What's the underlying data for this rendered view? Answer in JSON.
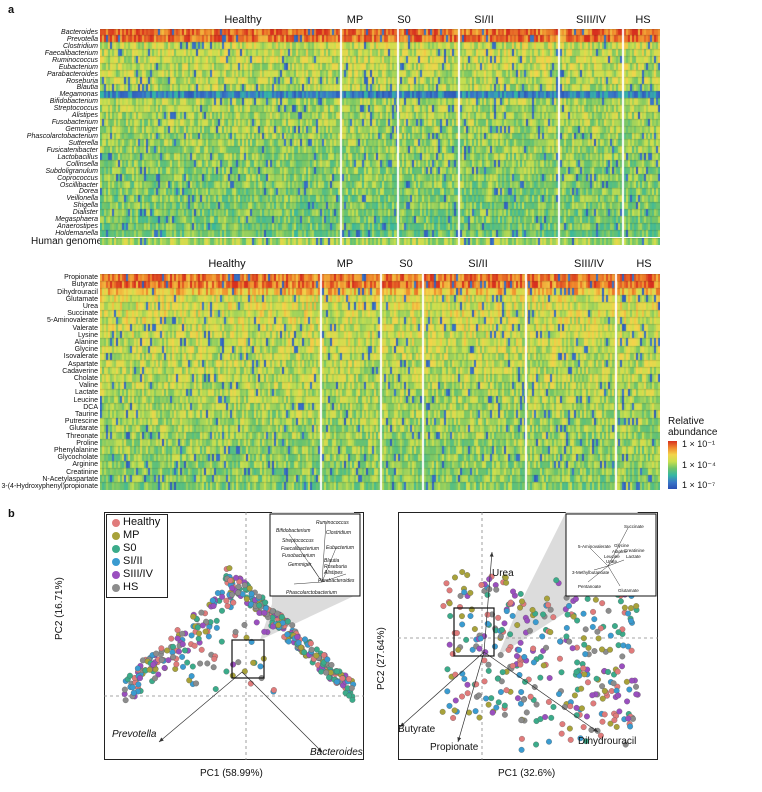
{
  "panel_a": {
    "letter": "a",
    "heatmap1": {
      "groups": [
        "Healthy",
        "MP",
        "S0",
        "SI/II",
        "SIII/IV",
        "HS"
      ],
      "rows": [
        "Bacteroides",
        "Prevotella",
        "Clostridium",
        "Faecalibacterium",
        "Ruminococcus",
        "Eubacterium",
        "Parabacteroides",
        "Roseburia",
        "Blautia",
        "Megamonas",
        "Bifidobacterium",
        "Streptococcus",
        "Alistipes",
        "Fusobacterium",
        "Gemmiger",
        "Phascolarctobacterium",
        "Sutterella",
        "Fusicatenibacter",
        "Lactobacillus",
        "Collinsella",
        "Subdoligranulum",
        "Coprococcus",
        "Oscillibacter",
        "Dorea",
        "Veillonella",
        "Shigella",
        "Dialister",
        "Megasphaera",
        "Anaerostipes",
        "Holdemanella"
      ],
      "extra_row": "Human genome rate"
    },
    "heatmap2": {
      "groups": [
        "Healthy",
        "MP",
        "S0",
        "SI/II",
        "SIII/IV",
        "HS"
      ],
      "rows": [
        "Propionate",
        "Butyrate",
        "Dihydrouracil",
        "Glutamate",
        "Urea",
        "Succinate",
        "5-Aminovalerate",
        "Valerate",
        "Lysine",
        "Alanine",
        "Glycine",
        "Isovalerate",
        "Aspartate",
        "Cadaverine",
        "Cholate",
        "Valine",
        "Lactate",
        "Leucine",
        "DCA",
        "Taurine",
        "Putrescine",
        "Glutarate",
        "Threonate",
        "Proline",
        "Phenylalanine",
        "Glycocholate",
        "Arginine",
        "Creatinine",
        "N-Acetylaspartate",
        "3-(4-Hydroxyphenyl)propionate"
      ]
    },
    "colorbar": {
      "title_line1": "Relative",
      "title_line2": "abundance",
      "ticks": [
        "1 × 10⁻¹",
        "1 × 10⁻⁴",
        "1 × 10⁻⁷"
      ]
    }
  },
  "panel_b": {
    "letter": "b",
    "legend": [
      {
        "label": "Healthy",
        "color": "#e07b7b"
      },
      {
        "label": "MP",
        "color": "#a8a23a"
      },
      {
        "label": "S0",
        "color": "#3bab8a"
      },
      {
        "label": "SI/II",
        "color": "#3a9bd0"
      },
      {
        "label": "SIII/IV",
        "color": "#9a4fbf"
      },
      {
        "label": "HS",
        "color": "#8c8c8c"
      }
    ],
    "left_plot": {
      "xlabel": "PC1 (58.99%)",
      "ylabel": "PC2 (16.71%)",
      "arrows": [
        "Prevotella",
        "Bacteroides"
      ],
      "inset_labels": [
        "Ruminococcus",
        "Bifidobacterium",
        "Clostridium",
        "Streptococcus",
        "Eubacterium",
        "Faecalibacterium",
        "Fusobacterium",
        "Blautia",
        "Gemmiger",
        "Roseburia",
        "Alistipes",
        "Parabacteroides",
        "Phascolarctobacterium"
      ]
    },
    "right_plot": {
      "xlabel": "PC1 (32.6%)",
      "ylabel": "PC2 (27.64%)",
      "arrows": [
        "Urea",
        "Butyrate",
        "Propionate",
        "Dihydrouracil"
      ],
      "inset_labels": [
        "Succinate",
        "5-Aminovalerate",
        "Glycine",
        "Creatinine",
        "Alanine",
        "Lactate",
        "Leucine",
        "Urate",
        "3-Methylbutanoate",
        "Pentanoate",
        "Glutamate"
      ]
    }
  }
}
